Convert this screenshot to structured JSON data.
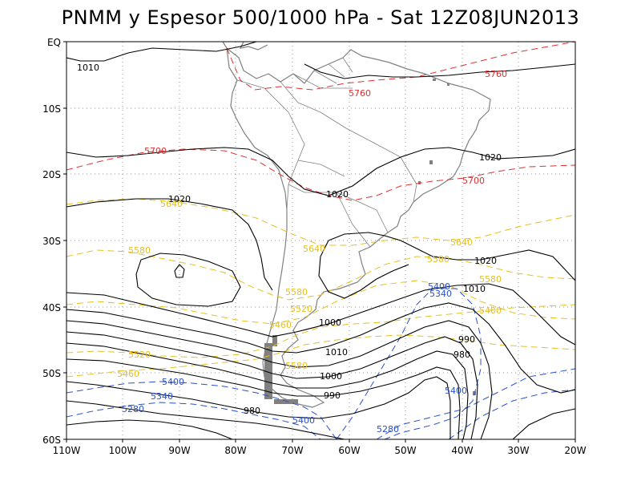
{
  "title": "PNMM y Espesor 500/1000 hPa - Sat 12Z08JUN2013",
  "lat_ticks": [
    "EQ",
    "10S",
    "20S",
    "30S",
    "40S",
    "50S",
    "60S"
  ],
  "lon_ticks": [
    "110W",
    "100W",
    "90W",
    "80W",
    "70W",
    "60W",
    "50W",
    "40W",
    "30W",
    "20W"
  ],
  "colors": {
    "pressure": "#000000",
    "thickness_warm": "#e03030",
    "thickness_mid": "#e6c020",
    "thickness_cold": "#2850d0",
    "coast": "#808080",
    "grid": "#9a9a9a"
  },
  "pressure_labels": [
    "1010",
    "1020",
    "1020",
    "1020",
    "1020",
    "1010",
    "1000",
    "1010",
    "1000",
    "990",
    "980",
    "990",
    "980"
  ],
  "thickness_labels_red": [
    "5760",
    "5760",
    "5700",
    "5700"
  ],
  "thickness_labels_yellow": [
    "5640",
    "5580",
    "5640",
    "5640",
    "5580",
    "5580",
    "5520",
    "5460",
    "5580",
    "5520",
    "5460",
    "5580",
    "5400"
  ],
  "thickness_labels_blue": [
    "5400",
    "5340",
    "5400",
    "5400",
    "5280",
    "5400",
    "5340",
    "5280"
  ]
}
